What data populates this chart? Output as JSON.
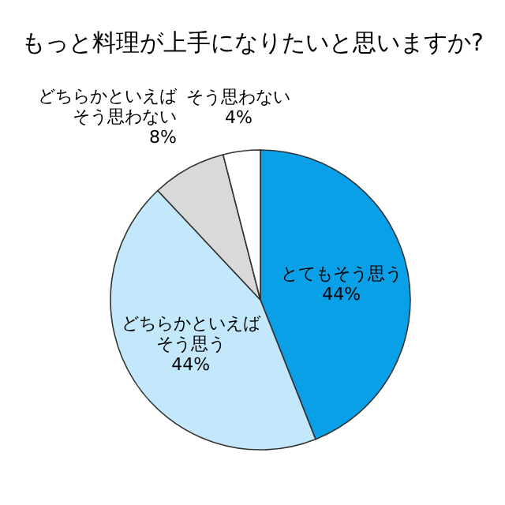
{
  "chart_data": {
    "type": "pie",
    "title": "もっと料理が上手になりたいと思いますか?",
    "categories": [
      "とてもそう思う",
      "どちらかといえばそう思う",
      "どちらかといえばそう思わない",
      "そう思わない"
    ],
    "values": [
      44,
      44,
      8,
      4
    ],
    "colors": [
      "#0aa0e8",
      "#c4e8fb",
      "#d9d9d9",
      "#ffffff"
    ],
    "value_labels": [
      "44%",
      "44%",
      "8%",
      "4%"
    ]
  }
}
